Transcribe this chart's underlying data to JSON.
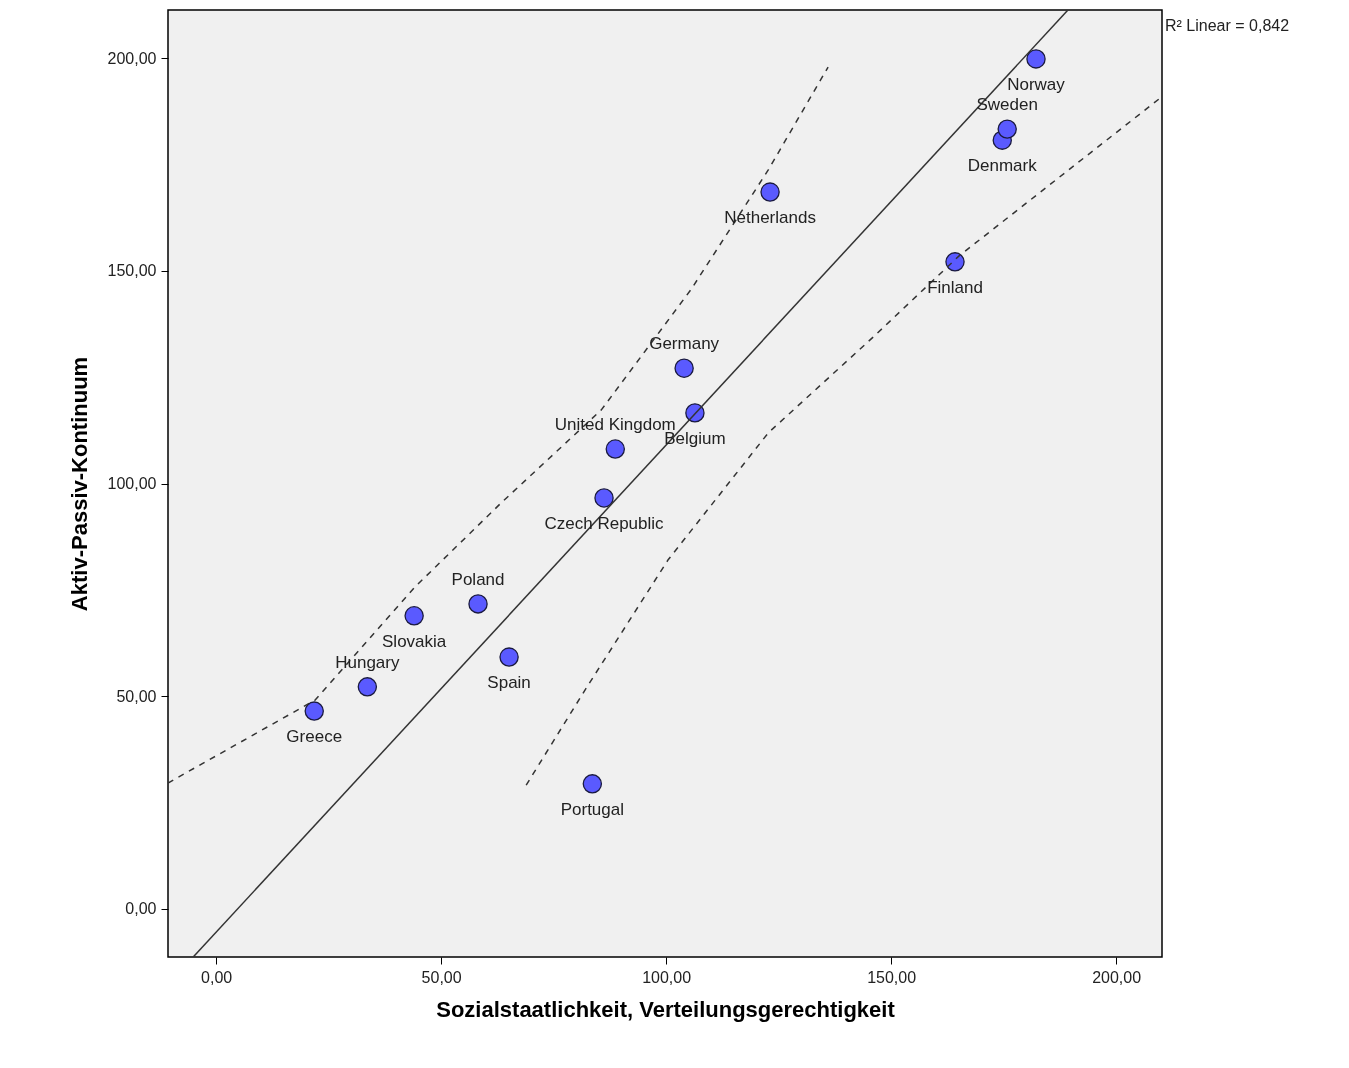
{
  "chart_data": {
    "type": "scatter",
    "xlabel": "Sozialstaatlichkeit, Verteilungsgerechtigkeit",
    "ylabel": "Aktiv-Passiv-Kontinuum",
    "xlim": [
      -10.7,
      210.2
    ],
    "ylim": [
      -11.3,
      211.3
    ],
    "xticks": [
      {
        "value": 0,
        "label": "0,00"
      },
      {
        "value": 50,
        "label": "50,00"
      },
      {
        "value": 100,
        "label": "100,00"
      },
      {
        "value": 150,
        "label": "150,00"
      },
      {
        "value": 200,
        "label": "200,00"
      }
    ],
    "yticks": [
      {
        "value": 0,
        "label": "0,00"
      },
      {
        "value": 50,
        "label": "50,00"
      },
      {
        "value": 100,
        "label": "100,00"
      },
      {
        "value": 150,
        "label": "150,00"
      },
      {
        "value": 200,
        "label": "200,00"
      }
    ],
    "grid": false,
    "marker": "circle",
    "series": [
      {
        "color": "#5a5aff",
        "x": [
          21.8,
          33.6,
          44.0,
          58.2,
          65.1,
          83.6,
          86.2,
          88.7,
          104.0,
          106.4,
          123.1,
          164.2,
          174.7,
          175.8,
          182.2
        ],
        "values": [
          46.5,
          52.2,
          68.9,
          71.7,
          59.2,
          29.4,
          96.6,
          108.1,
          127.1,
          116.6,
          168.5,
          152.1,
          180.7,
          183.3,
          199.8
        ]
      },
      {
        "type": "line",
        "marker": "none",
        "color": "#333333",
        "line_style": "solid",
        "x": [
          -5.1,
          189.3
        ],
        "values": [
          -11.3,
          211.3
        ]
      },
      {
        "type": "line",
        "marker": "none",
        "color": "#333333",
        "line_style": "dashed",
        "x": [
          -10.7,
          22.0,
          44.2,
          63.3,
          85.6,
          105.6,
          122.7,
          136.0
        ],
        "values": [
          29.6,
          49.1,
          75.7,
          95.4,
          117.3,
          145.7,
          173.7,
          197.9
        ]
      },
      {
        "type": "line",
        "marker": "none",
        "color": "#333333",
        "line_style": "dashed",
        "x": [
          68.9,
          82.0,
          100.4,
          122.7,
          146.0,
          165.1,
          209.8
        ],
        "values": [
          29.1,
          51.5,
          82.0,
          111.9,
          134.4,
          153.5,
          190.6
        ]
      }
    ],
    "annotations": [
      "R² Linear = 0,842",
      {
        "text": "Greece",
        "x": 21.8,
        "y": 46.5
      },
      {
        "text": "Hungary",
        "x": 33.6,
        "y": 52.2
      },
      {
        "text": "Slovakia",
        "x": 44.0,
        "y": 68.9
      },
      {
        "text": "Poland",
        "x": 58.2,
        "y": 71.7
      },
      {
        "text": "Spain",
        "x": 65.1,
        "y": 59.2
      },
      {
        "text": "Portugal",
        "x": 83.6,
        "y": 29.4
      },
      {
        "text": "Czech Republic",
        "x": 86.2,
        "y": 96.6
      },
      {
        "text": "United Kingdom",
        "x": 88.7,
        "y": 108.1
      },
      {
        "text": "Germany",
        "x": 104.0,
        "y": 127.1
      },
      {
        "text": "Belgium",
        "x": 106.4,
        "y": 116.6
      },
      {
        "text": "Netherlands",
        "x": 123.1,
        "y": 168.5
      },
      {
        "text": "Finland",
        "x": 164.2,
        "y": 152.1
      },
      {
        "text": "Denmark",
        "x": 174.7,
        "y": 180.7
      },
      {
        "text": "Sweden",
        "x": 175.8,
        "y": 183.3
      },
      {
        "text": "Norway",
        "x": 182.2,
        "y": 199.8
      }
    ]
  }
}
